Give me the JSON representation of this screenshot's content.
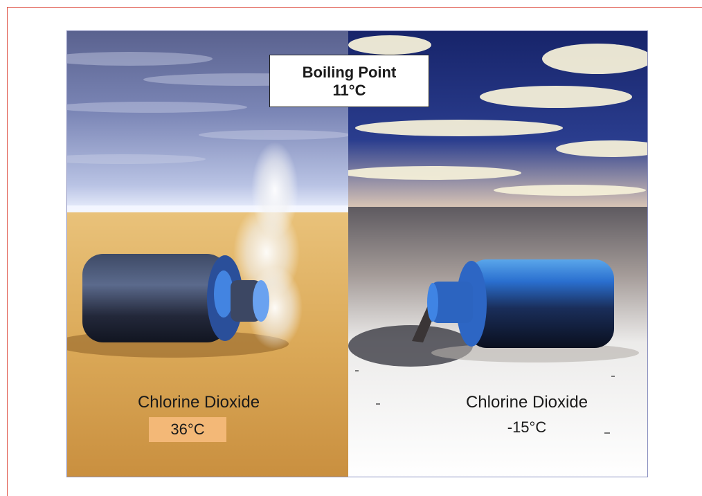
{
  "header_box": {
    "line1": "Boiling Point",
    "line2": "11°C"
  },
  "left_panel": {
    "substance": "Chlorine Dioxide",
    "temperature": "36°C",
    "scene": "warm-desert-evaporating"
  },
  "right_panel": {
    "substance": "Chlorine Dioxide",
    "temperature": "-15°C",
    "scene": "cold-snow-liquid-spill"
  },
  "colors": {
    "frame": "#e05a4e",
    "temp_highlight": "#f3b877",
    "border": "#8a8fbf"
  }
}
